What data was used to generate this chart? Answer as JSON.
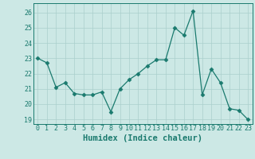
{
  "x": [
    0,
    1,
    2,
    3,
    4,
    5,
    6,
    7,
    8,
    9,
    10,
    11,
    12,
    13,
    14,
    15,
    16,
    17,
    18,
    19,
    20,
    21,
    22,
    23
  ],
  "y": [
    23.0,
    22.7,
    21.1,
    21.4,
    20.7,
    20.6,
    20.6,
    20.8,
    19.5,
    21.0,
    21.6,
    22.0,
    22.5,
    22.9,
    22.9,
    25.0,
    24.5,
    26.1,
    20.6,
    22.3,
    21.4,
    19.7,
    19.6,
    19.0
  ],
  "line_color": "#1a7a6e",
  "marker": "D",
  "marker_size": 2.5,
  "bg_color": "#cce8e5",
  "grid_color": "#aacfcc",
  "xlabel": "Humidex (Indice chaleur)",
  "ylim": [
    18.7,
    26.6
  ],
  "yticks": [
    19,
    20,
    21,
    22,
    23,
    24,
    25,
    26
  ],
  "xticks": [
    0,
    1,
    2,
    3,
    4,
    5,
    6,
    7,
    8,
    9,
    10,
    11,
    12,
    13,
    14,
    15,
    16,
    17,
    18,
    19,
    20,
    21,
    22,
    23
  ],
  "tick_fontsize": 6.0,
  "xlabel_fontsize": 7.5
}
